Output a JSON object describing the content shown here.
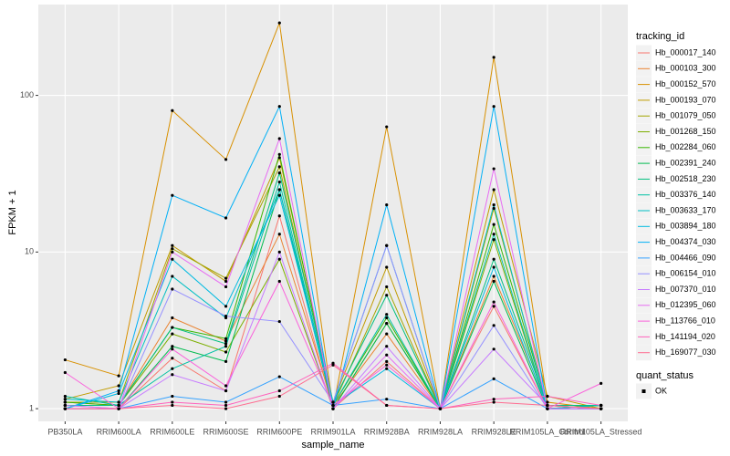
{
  "chart_data": {
    "type": "line",
    "x_label": "sample_name",
    "y_label": "FPKM + 1",
    "log_y": true,
    "grid": true,
    "categories": [
      "PB350LA",
      "RRIM600LA",
      "RRIM600LE",
      "RRIM600SE",
      "RRIM600PE",
      "RRIM901LA",
      "RRIM928BA",
      "RRIM928LA",
      "RRIM928LE",
      "RRIM105LA_Control",
      "RRIM105LA_Stressed"
    ],
    "ylim": [
      0.83,
      380
    ],
    "yticks": [
      1,
      10,
      100
    ],
    "legend_title": "tracking_id",
    "status_legend": {
      "title": "quant_status",
      "labels": [
        "OK"
      ],
      "color": "#000000"
    },
    "series": [
      {
        "name": "Hb_000017_140",
        "color": "#F8766D",
        "values": [
          1.05,
          1.0,
          2.1,
          1.3,
          17,
          1.0,
          2.0,
          1.0,
          4.5,
          1.0,
          1.05
        ]
      },
      {
        "name": "Hb_000103_300",
        "color": "#EA8331",
        "values": [
          1.1,
          1.05,
          3.8,
          2.7,
          13,
          1.05,
          3.0,
          1.0,
          7,
          1.05,
          1.0
        ]
      },
      {
        "name": "Hb_000152_570",
        "color": "#D89000",
        "values": [
          2.05,
          1.62,
          80,
          39,
          290,
          1.0,
          63,
          1.0,
          175,
          1.1,
          1.0
        ]
      },
      {
        "name": "Hb_000193_070",
        "color": "#C09B00",
        "values": [
          1.15,
          1.4,
          11,
          6.5,
          40,
          1.1,
          8,
          1.0,
          25,
          1.2,
          1.0
        ]
      },
      {
        "name": "Hb_001079_050",
        "color": "#A3A500",
        "values": [
          1.1,
          1.1,
          10.5,
          6.8,
          35,
          1.05,
          6,
          1.0,
          19,
          1.05,
          1.0
        ]
      },
      {
        "name": "Hb_001268_150",
        "color": "#7CAE00",
        "values": [
          1.05,
          1.05,
          3.0,
          2.3,
          9,
          1.0,
          3.5,
          1.0,
          12,
          1.0,
          1.05
        ]
      },
      {
        "name": "Hb_002284_060",
        "color": "#39B600",
        "values": [
          1.1,
          1.05,
          3.3,
          2.8,
          42,
          1.05,
          3.8,
          1.0,
          15,
          1.05,
          1.0
        ]
      },
      {
        "name": "Hb_002391_240",
        "color": "#00BB4E",
        "values": [
          1.0,
          1.0,
          2.5,
          2.0,
          25,
          1.0,
          3.5,
          1.0,
          6.5,
          1.0,
          1.05
        ]
      },
      {
        "name": "Hb_002518_230",
        "color": "#00BF7D",
        "values": [
          1.05,
          1.05,
          3.3,
          2.6,
          32,
          1.1,
          5.3,
          1.0,
          9,
          1.05,
          1.05
        ]
      },
      {
        "name": "Hb_003376_140",
        "color": "#00C1A3",
        "values": [
          1.2,
          1.05,
          1.8,
          2.5,
          28,
          1.05,
          4.0,
          1.0,
          13,
          1.0,
          1.0
        ]
      },
      {
        "name": "Hb_003633_170",
        "color": "#00BFC4",
        "values": [
          1.15,
          1.1,
          7,
          3.8,
          25,
          1.1,
          11,
          1.0,
          20,
          1.0,
          1.05
        ]
      },
      {
        "name": "Hb_003894_180",
        "color": "#00BAE0",
        "values": [
          1.0,
          1.25,
          9,
          4.5,
          23,
          1.05,
          1.8,
          1.0,
          8,
          1.0,
          1.0
        ]
      },
      {
        "name": "Hb_004374_030",
        "color": "#00B0F6",
        "values": [
          1.0,
          1.3,
          23,
          16.5,
          85,
          1.0,
          20,
          1.0,
          85,
          1.0,
          1.0
        ]
      },
      {
        "name": "Hb_004466_090",
        "color": "#35A2FF",
        "values": [
          1.0,
          1.0,
          1.2,
          1.1,
          1.6,
          1.05,
          1.15,
          1.0,
          1.55,
          1.0,
          1.0
        ]
      },
      {
        "name": "Hb_006154_010",
        "color": "#9590FF",
        "values": [
          1.0,
          1.0,
          5.8,
          3.9,
          3.6,
          1.1,
          11,
          1.0,
          3.4,
          1.0,
          1.0
        ]
      },
      {
        "name": "Hb_007370_010",
        "color": "#C77CFF",
        "values": [
          1.05,
          1.0,
          1.65,
          1.3,
          10,
          1.0,
          2.5,
          1.0,
          2.4,
          1.05,
          1.0
        ]
      },
      {
        "name": "Hb_012395_060",
        "color": "#E76BF3",
        "values": [
          1.0,
          1.0,
          10,
          6,
          53,
          1.0,
          2.2,
          1.0,
          34,
          1.0,
          1.0
        ]
      },
      {
        "name": "Hb_113766_010",
        "color": "#FA62DB",
        "values": [
          1.7,
          1.0,
          2.4,
          1.4,
          6.5,
          1.05,
          1.9,
          1.0,
          4.8,
          1.0,
          1.45
        ]
      },
      {
        "name": "Hb_141194_020",
        "color": "#FF62BC",
        "values": [
          1.0,
          1.0,
          1.1,
          1.05,
          1.3,
          1.95,
          1.05,
          1.0,
          1.15,
          1.2,
          1.05
        ]
      },
      {
        "name": "Hb_169077_030",
        "color": "#FF6C91",
        "values": [
          1.0,
          1.0,
          1.05,
          1.0,
          1.2,
          1.9,
          1.05,
          1.0,
          1.1,
          1.05,
          1.0
        ]
      }
    ]
  }
}
